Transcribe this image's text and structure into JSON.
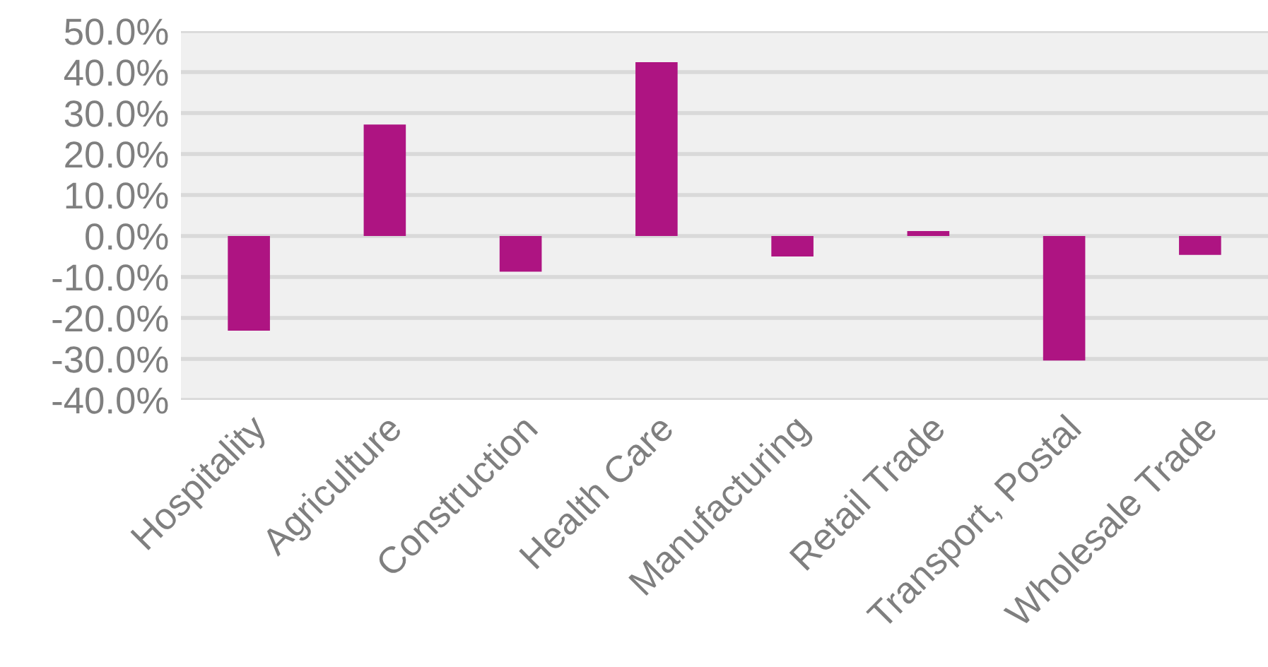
{
  "chart_data": {
    "type": "bar",
    "categories": [
      "Hospitality",
      "Agriculture",
      "Construction",
      "Health Care",
      "Manufacturing",
      "Retail Trade",
      "Transport, Postal",
      "Wholesale Trade"
    ],
    "values": [
      -23.1,
      27.2,
      -8.7,
      42.4,
      -5.0,
      1.2,
      -30.4,
      -4.6
    ],
    "color": "#ae1482",
    "ylim": [
      -40,
      50
    ],
    "yticks": [
      {
        "value": -40,
        "label": "-40.0%"
      },
      {
        "value": -30,
        "label": "-30.0%"
      },
      {
        "value": -20,
        "label": "-20.0%"
      },
      {
        "value": -10,
        "label": "-10.0%"
      },
      {
        "value": 0,
        "label": "0.0%"
      },
      {
        "value": 10,
        "label": "10.0%"
      },
      {
        "value": 20,
        "label": "20.0%"
      },
      {
        "value": 30,
        "label": "30.0%"
      },
      {
        "value": 40,
        "label": "40.0%"
      },
      {
        "value": 50,
        "label": "50.0%"
      }
    ],
    "grid": "y",
    "legend": false
  }
}
